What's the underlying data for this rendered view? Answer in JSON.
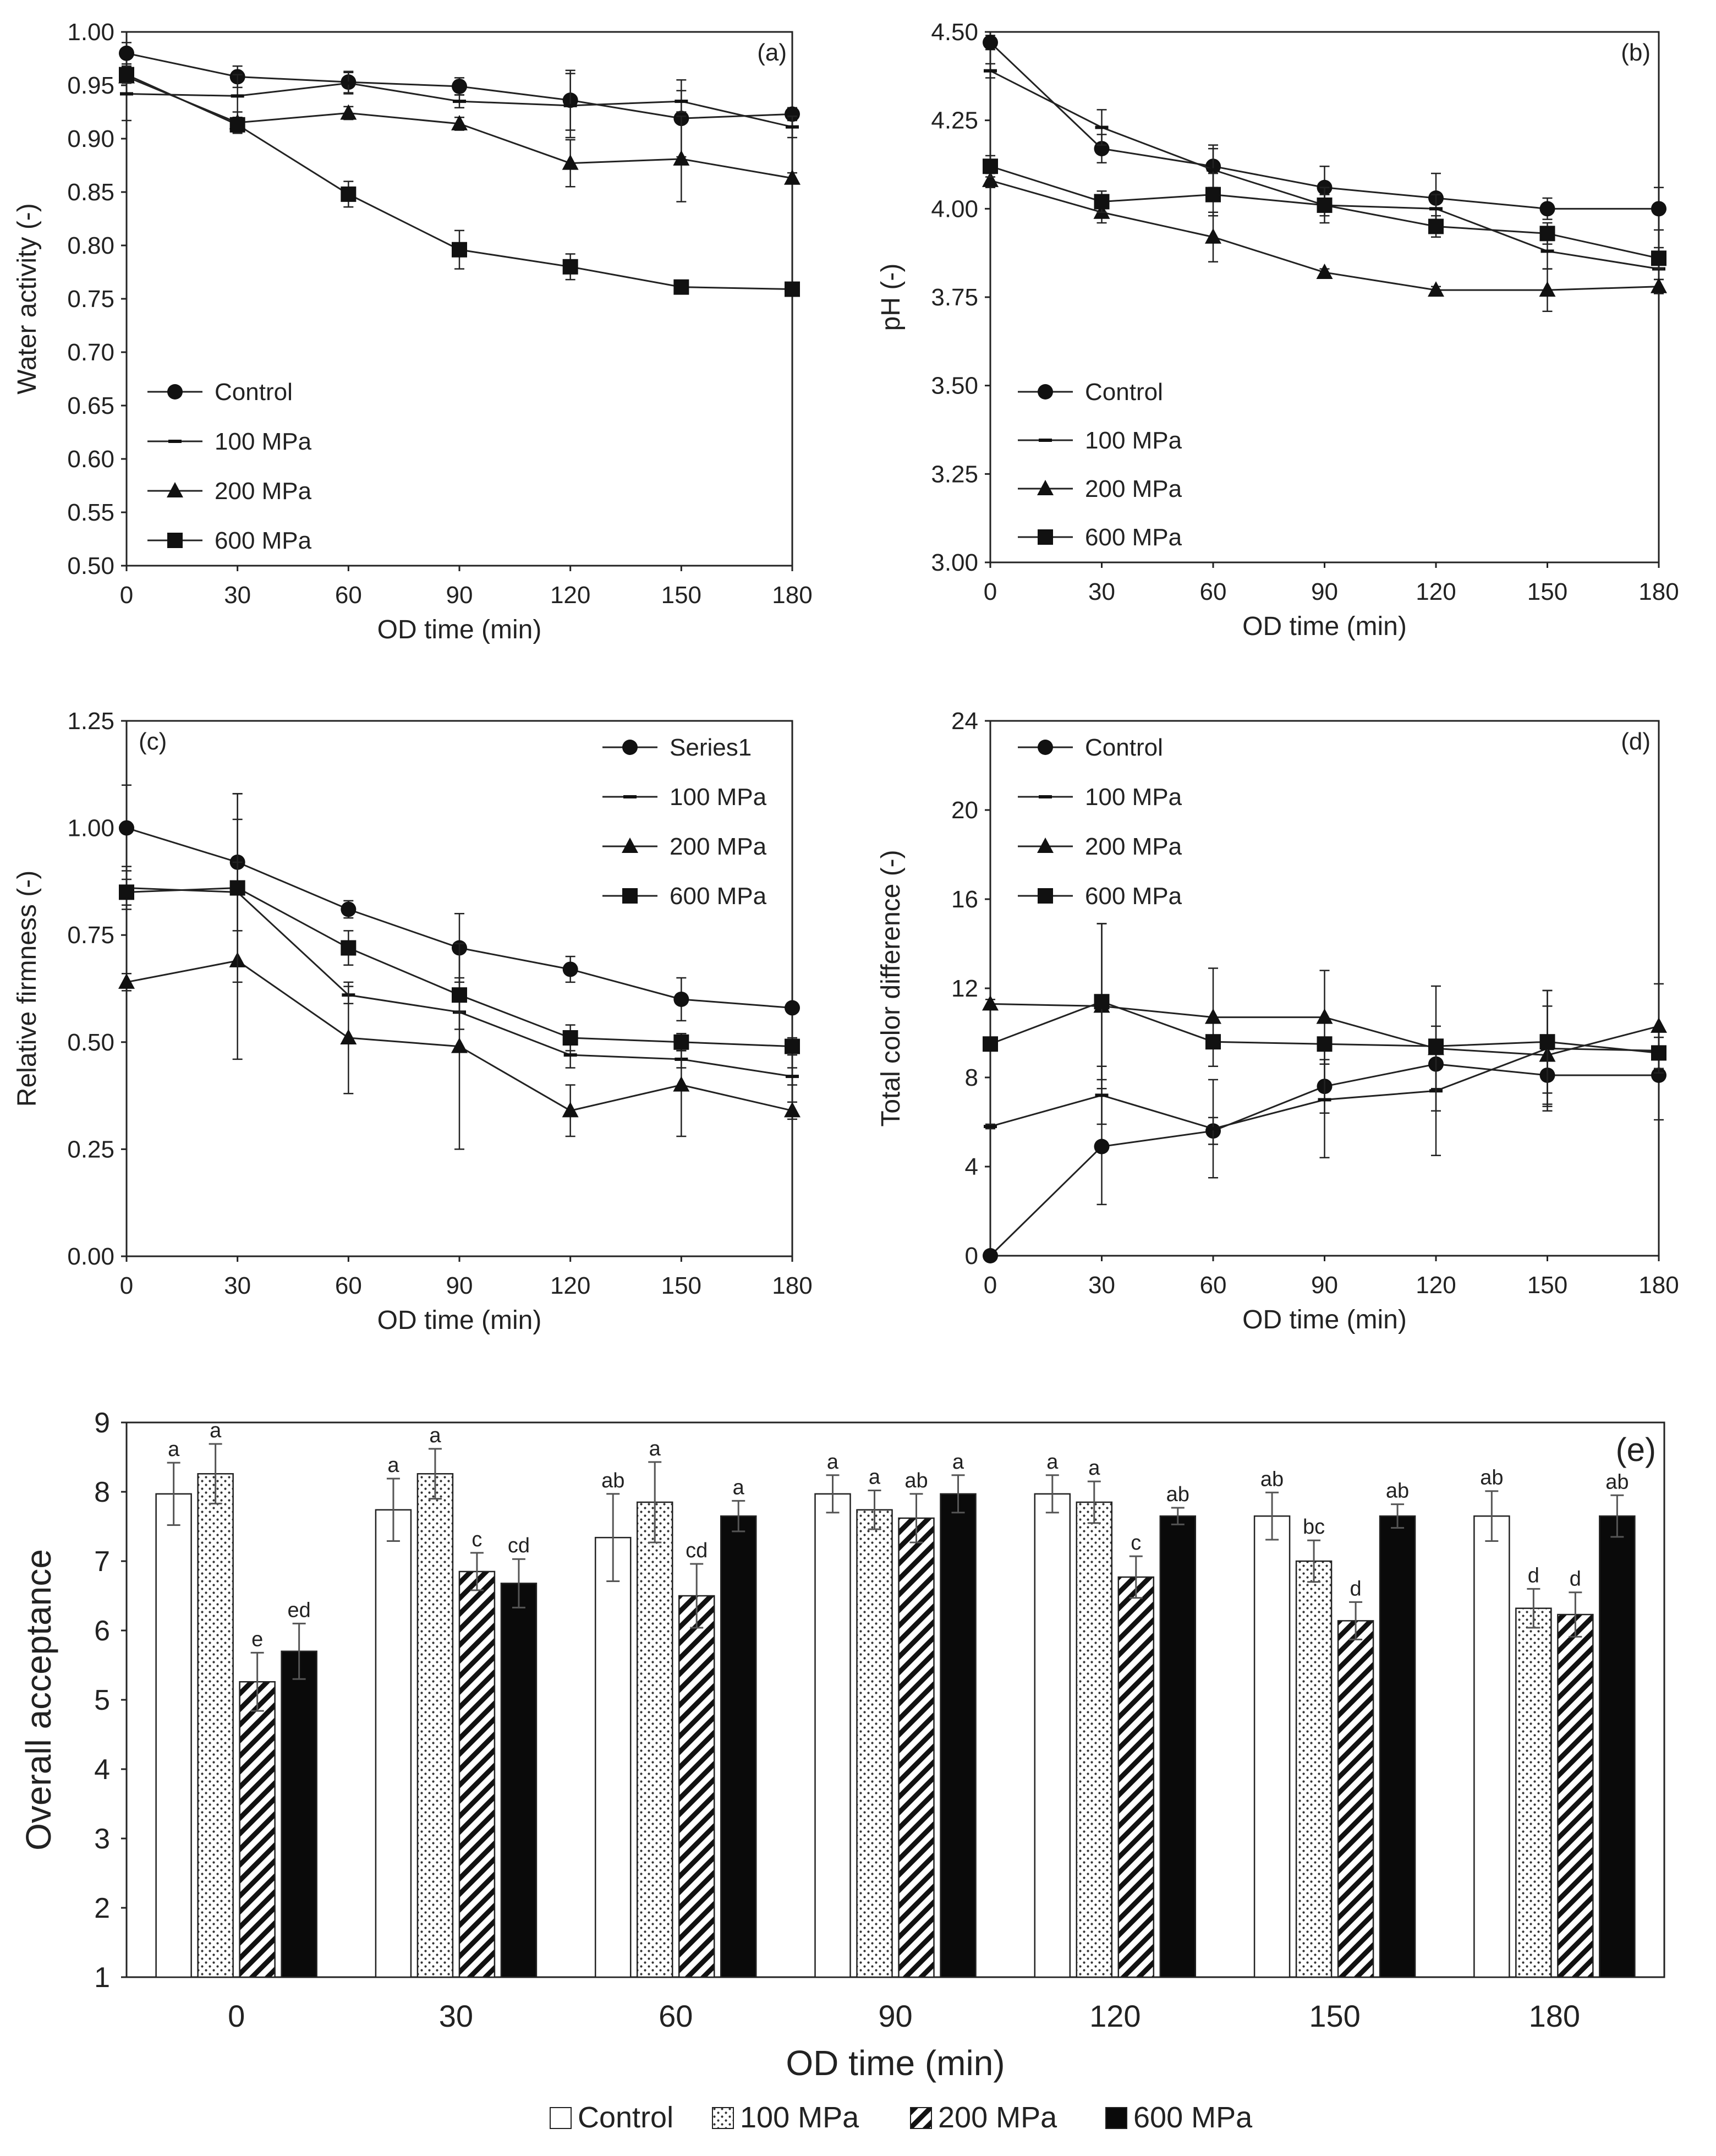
{
  "chart_data": [
    {
      "id": "a",
      "type": "line",
      "panel_label": "(a)",
      "xlabel": "OD time (min)",
      "ylabel": "Water activity (-)",
      "x": [
        0,
        30,
        60,
        90,
        120,
        150,
        180
      ],
      "xticks": [
        "0",
        "30",
        "60",
        "90",
        "120",
        "150",
        "180"
      ],
      "ylim": [
        0.5,
        1.0
      ],
      "yticks": [
        "0.50",
        "0.55",
        "0.60",
        "0.65",
        "0.70",
        "0.75",
        "0.80",
        "0.85",
        "0.90",
        "0.95",
        "1.00"
      ],
      "legend": {
        "position": "bottom-left"
      },
      "series": [
        {
          "name": "Control",
          "marker": "circle",
          "values": [
            0.98,
            0.958,
            0.953,
            0.949,
            0.936,
            0.919,
            0.923
          ],
          "errors": [
            0.01,
            0.01,
            0.01,
            0.008,
            0.028,
            0.036,
            0.006
          ]
        },
        {
          "name": "100 MPa",
          "marker": "dash",
          "values": [
            0.942,
            0.94,
            0.952,
            0.935,
            0.931,
            0.935,
            0.911
          ],
          "errors": [
            0.025,
            0.02,
            0.01,
            0.006,
            0.03,
            0.01,
            0.01
          ]
        },
        {
          "name": "200 MPa",
          "marker": "triangle",
          "values": [
            0.958,
            0.915,
            0.924,
            0.914,
            0.877,
            0.881,
            0.863
          ],
          "errors": [
            0.006,
            0.01,
            0.006,
            0.006,
            0.022,
            0.04,
            0.005
          ]
        },
        {
          "name": "600 MPa",
          "marker": "square",
          "values": [
            0.96,
            0.913,
            0.848,
            0.796,
            0.78,
            0.761,
            0.759
          ],
          "errors": [
            0.008,
            0.007,
            0.012,
            0.018,
            0.012,
            0.004,
            0.004
          ]
        }
      ]
    },
    {
      "id": "b",
      "type": "line",
      "panel_label": "(b)",
      "xlabel": "OD time (min)",
      "ylabel": "pH (-)",
      "x": [
        0,
        30,
        60,
        90,
        120,
        150,
        180
      ],
      "xticks": [
        "0",
        "30",
        "60",
        "90",
        "120",
        "150",
        "180"
      ],
      "ylim": [
        3.0,
        4.5
      ],
      "yticks": [
        "3.00",
        "3.25",
        "3.50",
        "3.75",
        "4.00",
        "4.25",
        "4.50"
      ],
      "legend": {
        "position": "bottom-left"
      },
      "series": [
        {
          "name": "Control",
          "marker": "circle",
          "values": [
            4.47,
            4.17,
            4.12,
            4.06,
            4.03,
            4.0,
            4.0
          ],
          "errors": [
            0.02,
            0.04,
            0.06,
            0.06,
            0.07,
            0.03,
            0.06
          ]
        },
        {
          "name": "100 MPa",
          "marker": "dash",
          "values": [
            4.39,
            4.23,
            4.11,
            4.01,
            4.0,
            3.88,
            3.83
          ],
          "errors": [
            0.02,
            0.05,
            0.06,
            0.03,
            0.04,
            0.05,
            0.03
          ]
        },
        {
          "name": "200 MPa",
          "marker": "triangle",
          "values": [
            4.08,
            3.99,
            3.92,
            3.82,
            3.77,
            3.77,
            3.78
          ],
          "errors": [
            0.02,
            0.03,
            0.07,
            0.01,
            0.01,
            0.06,
            0.02
          ]
        },
        {
          "name": "600 MPa",
          "marker": "square",
          "values": [
            4.12,
            4.02,
            4.04,
            4.01,
            3.95,
            3.93,
            3.86
          ],
          "errors": [
            0.03,
            0.03,
            0.06,
            0.05,
            0.03,
            0.03,
            0.03
          ]
        }
      ]
    },
    {
      "id": "c",
      "type": "line",
      "panel_label": "(c)",
      "xlabel": "OD time (min)",
      "ylabel": "Relative firmness (-)",
      "x": [
        0,
        30,
        60,
        90,
        120,
        150,
        180
      ],
      "xticks": [
        "0",
        "30",
        "60",
        "90",
        "120",
        "150",
        "180"
      ],
      "ylim": [
        0,
        1.25
      ],
      "yticks": [
        "0.00",
        "0.25",
        "0.50",
        "0.75",
        "1.00",
        "1.25"
      ],
      "legend": {
        "position": "top-right"
      },
      "series": [
        {
          "name": "Series1",
          "marker": "circle",
          "values": [
            1.0,
            0.92,
            0.81,
            0.72,
            0.67,
            0.6,
            0.58
          ],
          "errors": [
            0.1,
            0.16,
            0.02,
            0.08,
            0.03,
            0.05,
            0.01
          ]
        },
        {
          "name": "100 MPa",
          "marker": "dash",
          "values": [
            0.86,
            0.85,
            0.61,
            0.57,
            0.47,
            0.46,
            0.42
          ],
          "errors": [
            0.05,
            0.17,
            0.02,
            0.04,
            0.03,
            0.02,
            0.02
          ]
        },
        {
          "name": "200 MPa",
          "marker": "triangle",
          "values": [
            0.64,
            0.69,
            0.51,
            0.49,
            0.34,
            0.4,
            0.34
          ],
          "errors": [
            0.02,
            0.23,
            0.13,
            0.24,
            0.06,
            0.12,
            0.02
          ]
        },
        {
          "name": "600 MPa",
          "marker": "square",
          "values": [
            0.85,
            0.86,
            0.72,
            0.61,
            0.51,
            0.5,
            0.49
          ],
          "errors": [
            0.03,
            0.22,
            0.04,
            0.04,
            0.03,
            0.02,
            0.02
          ]
        }
      ]
    },
    {
      "id": "d",
      "type": "line",
      "panel_label": "(d)",
      "xlabel": "OD time (min)",
      "ylabel": "Total color difference (-)",
      "x": [
        0,
        30,
        60,
        90,
        120,
        150,
        180
      ],
      "xticks": [
        "0",
        "30",
        "60",
        "90",
        "120",
        "150",
        "180"
      ],
      "ylim": [
        0,
        24
      ],
      "yticks": [
        "0",
        "4",
        "8",
        "12",
        "16",
        "20",
        "24"
      ],
      "legend": {
        "position": "top-left"
      },
      "series": [
        {
          "name": "Control",
          "marker": "circle",
          "values": [
            0.0,
            4.9,
            5.6,
            7.6,
            8.6,
            8.1,
            8.1
          ],
          "errors": [
            0.1,
            2.6,
            0.6,
            1.2,
            1.1,
            1.6,
            2.0
          ]
        },
        {
          "name": "100 MPa",
          "marker": "dash",
          "values": [
            5.8,
            7.2,
            5.7,
            7.0,
            7.4,
            9.3,
            9.2
          ],
          "errors": [
            0.1,
            1.3,
            2.2,
            2.6,
            2.9,
            2.6,
            1.0
          ]
        },
        {
          "name": "200 MPa",
          "marker": "triangle",
          "values": [
            11.3,
            11.2,
            10.7,
            10.7,
            9.3,
            9.0,
            10.3
          ],
          "errors": [
            0.2,
            3.7,
            2.2,
            2.1,
            2.8,
            2.2,
            1.9
          ]
        },
        {
          "name": "600 MPa",
          "marker": "square",
          "values": [
            9.5,
            11.4,
            9.6,
            9.5,
            9.4,
            9.6,
            9.1
          ],
          "errors": [
            0.1,
            3.5,
            0.3,
            0.2,
            0.2,
            2.3,
            0.7
          ]
        }
      ]
    },
    {
      "id": "e",
      "type": "bar",
      "panel_label": "(e)",
      "xlabel": "OD time (min)",
      "ylabel": "Overall acceptance",
      "categories": [
        "0",
        "30",
        "60",
        "90",
        "120",
        "150",
        "180"
      ],
      "ylim": [
        1,
        9
      ],
      "yticks": [
        "1",
        "2",
        "3",
        "4",
        "5",
        "6",
        "7",
        "8",
        "9"
      ],
      "legend": {
        "position": "bottom-center"
      },
      "series": [
        {
          "name": "Control",
          "fill": "white",
          "values": [
            7.97,
            7.74,
            7.34,
            7.97,
            7.97,
            7.65,
            7.65
          ],
          "errors": [
            0.45,
            0.45,
            0.63,
            0.27,
            0.27,
            0.34,
            0.36
          ],
          "letters": [
            "a",
            "a",
            "ab",
            "a",
            "a",
            "ab",
            "ab"
          ]
        },
        {
          "name": "100 MPa",
          "fill": "dots",
          "values": [
            8.26,
            8.26,
            7.85,
            7.74,
            7.85,
            7.0,
            6.32
          ],
          "errors": [
            0.43,
            0.36,
            0.58,
            0.28,
            0.3,
            0.3,
            0.28
          ],
          "letters": [
            "a",
            "a",
            "a",
            "a",
            "a",
            "bc",
            "d"
          ]
        },
        {
          "name": "200 MPa",
          "fill": "hatch",
          "values": [
            5.26,
            6.85,
            6.5,
            7.62,
            6.77,
            6.14,
            6.23
          ],
          "errors": [
            0.42,
            0.27,
            0.46,
            0.35,
            0.3,
            0.27,
            0.32
          ],
          "letters": [
            "e",
            "c",
            "cd",
            "ab",
            "c",
            "d",
            "d"
          ]
        },
        {
          "name": "600 MPa",
          "fill": "black",
          "values": [
            5.7,
            6.68,
            7.65,
            7.97,
            7.65,
            7.65,
            7.65
          ],
          "errors": [
            0.4,
            0.35,
            0.22,
            0.27,
            0.12,
            0.17,
            0.3
          ],
          "letters": [
            "ed",
            "cd",
            "a",
            "a",
            "ab",
            "ab",
            "ab"
          ]
        }
      ]
    }
  ]
}
